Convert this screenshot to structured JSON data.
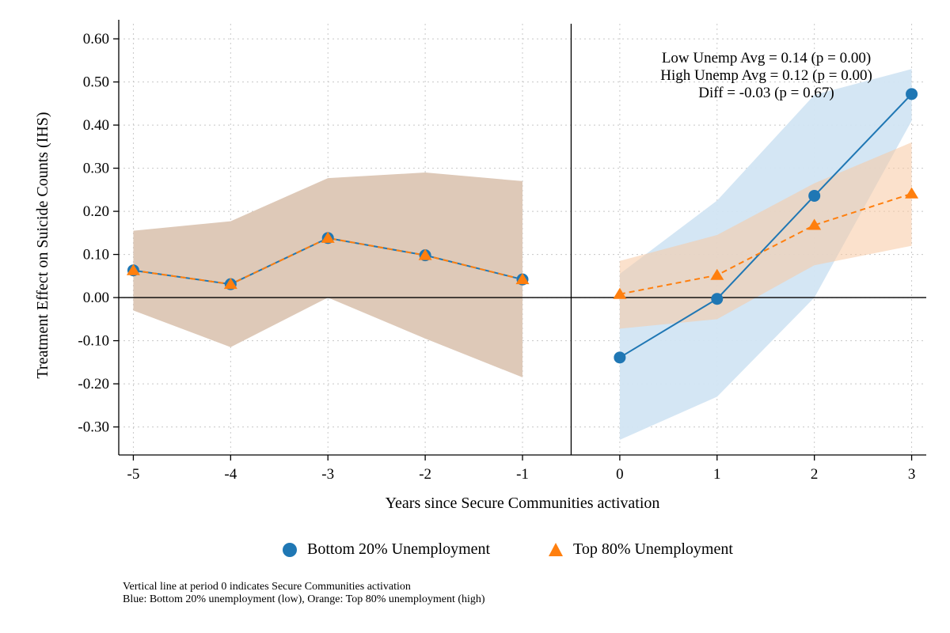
{
  "chart_data": {
    "type": "line",
    "xlabel": "Years since Secure Communities activation",
    "ylabel": "Treatment Effect on Suicide Counts (IHS)",
    "x": [
      -5,
      -4,
      -3,
      -2,
      -1,
      0,
      1,
      2,
      3
    ],
    "xticks": [
      -5,
      -4,
      -3,
      -2,
      -1,
      0,
      1,
      2,
      3
    ],
    "yticks": [
      "0.60",
      "0.50",
      "0.40",
      "0.30",
      "0.20",
      "0.10",
      "0.00",
      "-0.10",
      "-0.20",
      "-0.30"
    ],
    "xlim": [
      -5.15,
      3.15
    ],
    "ylim": [
      -0.365,
      0.635
    ],
    "grid": true,
    "reference_lines": {
      "x": -0.5,
      "y": 0
    },
    "series": [
      {
        "name": "Bottom 20% Unemployment",
        "color": "#1f77b4",
        "band_color": "#d2e5f3",
        "marker": "circle",
        "line": "solid",
        "pre": {
          "x": [
            -5,
            -4,
            -3,
            -2,
            -1
          ],
          "values": [
            0.063,
            0.031,
            0.138,
            0.098,
            0.042
          ],
          "ci_low": [
            -0.03,
            -0.115,
            0.0,
            -0.095,
            -0.185
          ],
          "ci_high": [
            0.155,
            0.177,
            0.277,
            0.29,
            0.27
          ]
        },
        "post": {
          "x": [
            0,
            1,
            2,
            3
          ],
          "values": [
            -0.139,
            -0.003,
            0.236,
            0.472
          ],
          "ci_low": [
            -0.33,
            -0.23,
            0.0,
            0.41
          ],
          "ci_high": [
            0.055,
            0.225,
            0.47,
            0.53
          ]
        }
      },
      {
        "name": "Top 80% Unemployment",
        "color": "#ff7f0e",
        "band_color": "#fde3cc",
        "marker": "triangle",
        "line": "dashed",
        "pre": {
          "x": [
            -5,
            -4,
            -3,
            -2,
            -1
          ],
          "values": [
            0.063,
            0.031,
            0.138,
            0.098,
            0.042
          ],
          "ci_low": [
            -0.03,
            -0.115,
            0.0,
            -0.095,
            -0.185
          ],
          "ci_high": [
            0.155,
            0.177,
            0.277,
            0.29,
            0.27
          ]
        },
        "post": {
          "x": [
            0,
            1,
            2,
            3
          ],
          "values": [
            0.008,
            0.052,
            0.168,
            0.241
          ],
          "ci_low": [
            -0.072,
            -0.05,
            0.075,
            0.12
          ],
          "ci_high": [
            0.085,
            0.145,
            0.265,
            0.36
          ]
        }
      }
    ],
    "pre_band_color": "#dec9b8",
    "overlap_band_color": "#ddd0c3",
    "annotations": [
      "Low Unemp Avg = 0.14 (p = 0.00)",
      "High Unemp Avg = 0.12 (p = 0.00)",
      "Diff = -0.03 (p = 0.67)"
    ],
    "legend": {
      "position": "bottom",
      "items": [
        "Bottom 20% Unemployment",
        "Top 80% Unemployment"
      ]
    },
    "notes": [
      "Vertical line at period 0 indicates Secure Communities activation",
      "Blue: Bottom 20% unemployment (low), Orange: Top 80% unemployment (high)"
    ]
  }
}
